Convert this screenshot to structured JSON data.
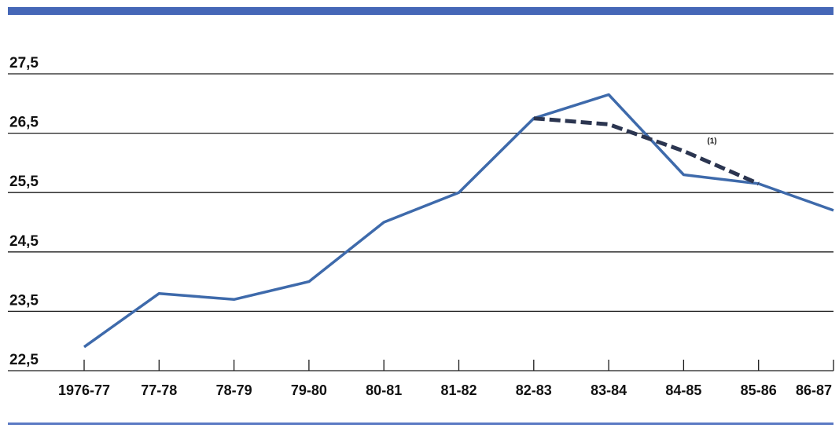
{
  "chart_data": {
    "type": "line",
    "title": "",
    "xlabel": "",
    "ylabel": "",
    "categories": [
      "1976-77",
      "77-78",
      "78-79",
      "79-80",
      "80-81",
      "81-82",
      "82-83",
      "83-84",
      "84-85",
      "85-86",
      "86-87"
    ],
    "y_ticks": [
      "27,5",
      "26,5",
      "25,5",
      "24,5",
      "23,5",
      "22,5"
    ],
    "y_tick_values": [
      27.5,
      26.5,
      25.5,
      24.5,
      23.5,
      22.5
    ],
    "ylim": [
      22.5,
      27.5
    ],
    "grid": true,
    "series": [
      {
        "values": [
          22.9,
          23.8,
          23.7,
          24.0,
          25.0,
          25.5,
          26.75,
          27.15,
          25.8,
          25.65,
          25.2
        ],
        "color": "#3e6aab",
        "style": "solid"
      },
      {
        "x": [
          "82-83",
          "83-84",
          "84-85",
          "85-86"
        ],
        "values": [
          26.75,
          26.65,
          26.2,
          25.65
        ],
        "color": "#2b3550",
        "style": "dashed"
      }
    ],
    "annotations": [
      {
        "text": "(1)",
        "x": "84-85",
        "y": 26.3
      }
    ],
    "colors": {
      "top_bar": "#4567b7",
      "bottom_bar": "#5b7ac4",
      "grid": "#1a1a1a"
    }
  }
}
